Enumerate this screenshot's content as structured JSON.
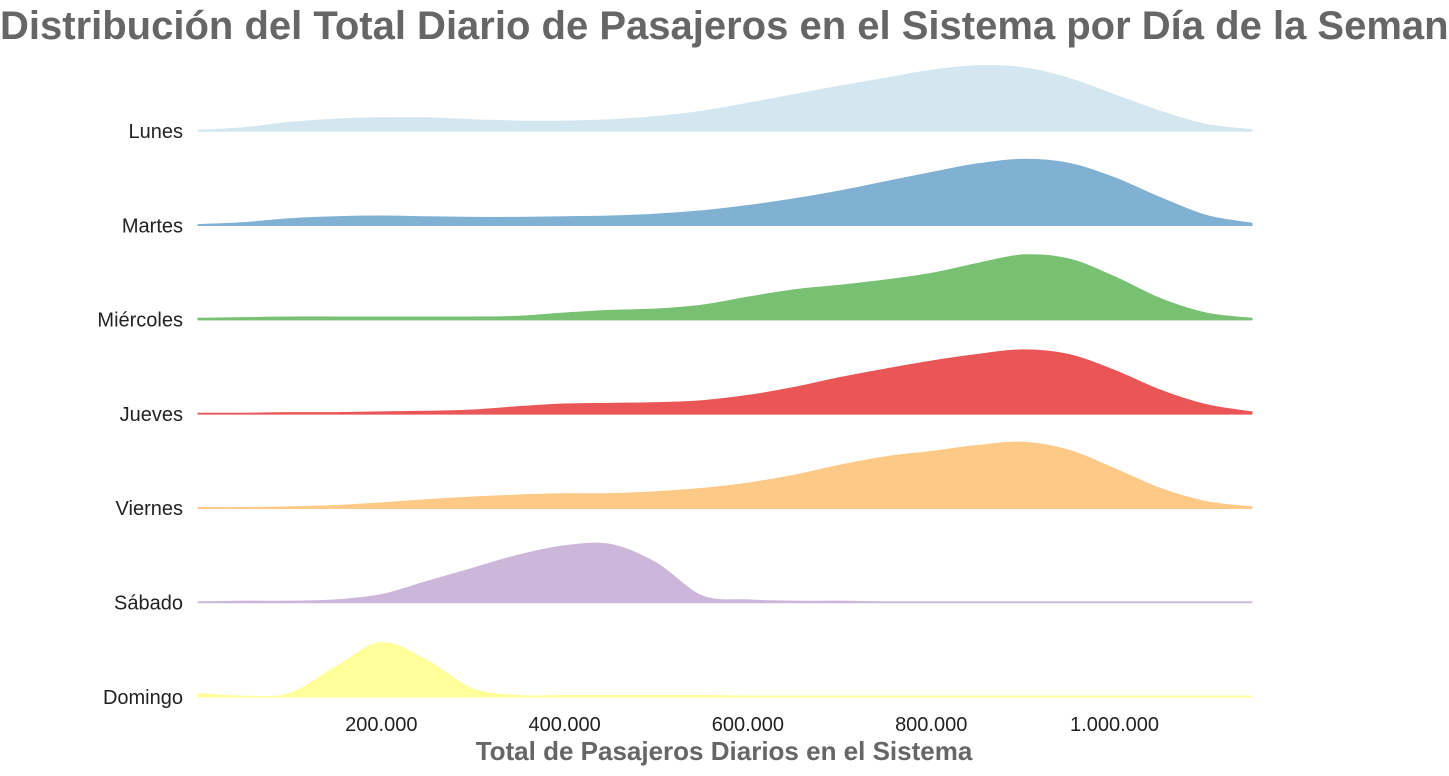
{
  "chart_data": {
    "type": "area",
    "subtype": "ridgeline",
    "title": "Distribución del Total Diario de Pasajeros en el Sistema por Día de la Semana",
    "xlabel": "Total de Pasajeros Diarios en el Sistema",
    "ylabel": "",
    "xlim": [
      0,
      1150000
    ],
    "x_ticks": [
      200000,
      400000,
      600000,
      800000,
      1000000
    ],
    "x_tick_labels": [
      "200.000",
      "400.000",
      "600.000",
      "800.000",
      "1.000.000"
    ],
    "grid": false,
    "legend": "none",
    "x": [
      0,
      50000,
      100000,
      150000,
      200000,
      250000,
      300000,
      350000,
      400000,
      450000,
      500000,
      550000,
      600000,
      650000,
      700000,
      750000,
      800000,
      850000,
      900000,
      950000,
      1000000,
      1050000,
      1100000,
      1150000
    ],
    "series": [
      {
        "name": "Lunes",
        "color": "#d4e6f0",
        "values": [
          0.01,
          0.05,
          0.13,
          0.18,
          0.2,
          0.2,
          0.17,
          0.15,
          0.15,
          0.17,
          0.22,
          0.3,
          0.42,
          0.55,
          0.68,
          0.8,
          0.92,
          0.99,
          0.96,
          0.8,
          0.55,
          0.3,
          0.1,
          0.02
        ]
      },
      {
        "name": "Martes",
        "color": "#80b1d3",
        "values": [
          0.01,
          0.04,
          0.1,
          0.13,
          0.14,
          0.13,
          0.12,
          0.12,
          0.13,
          0.14,
          0.17,
          0.22,
          0.3,
          0.4,
          0.52,
          0.66,
          0.8,
          0.93,
          1.0,
          0.94,
          0.72,
          0.42,
          0.15,
          0.03
        ]
      },
      {
        "name": "Miércoles",
        "color": "#78c173",
        "values": [
          0.02,
          0.03,
          0.04,
          0.04,
          0.04,
          0.04,
          0.04,
          0.05,
          0.1,
          0.14,
          0.16,
          0.22,
          0.34,
          0.45,
          0.52,
          0.6,
          0.7,
          0.85,
          0.98,
          0.92,
          0.65,
          0.32,
          0.1,
          0.02
        ]
      },
      {
        "name": "Jueves",
        "color": "#ea5656",
        "values": [
          0.01,
          0.01,
          0.02,
          0.02,
          0.03,
          0.04,
          0.06,
          0.11,
          0.15,
          0.16,
          0.17,
          0.2,
          0.28,
          0.4,
          0.55,
          0.68,
          0.8,
          0.9,
          0.97,
          0.9,
          0.66,
          0.36,
          0.14,
          0.03
        ]
      },
      {
        "name": "Viernes",
        "color": "#fdc986",
        "values": [
          0.01,
          0.01,
          0.02,
          0.04,
          0.08,
          0.13,
          0.17,
          0.2,
          0.22,
          0.22,
          0.25,
          0.3,
          0.38,
          0.5,
          0.65,
          0.78,
          0.86,
          0.95,
          1.0,
          0.88,
          0.6,
          0.3,
          0.1,
          0.02
        ]
      },
      {
        "name": "Sábado",
        "color": "#ccb6d9",
        "values": [
          0.01,
          0.02,
          0.02,
          0.04,
          0.12,
          0.32,
          0.52,
          0.72,
          0.86,
          0.88,
          0.6,
          0.1,
          0.04,
          0.02,
          0.02,
          0.01,
          0.01,
          0.01,
          0.01,
          0.01,
          0.01,
          0.01,
          0.01,
          0.01
        ]
      },
      {
        "name": "Domingo",
        "color": "#ffff99",
        "values": [
          0.05,
          0.01,
          0.05,
          0.45,
          0.82,
          0.55,
          0.12,
          0.02,
          0.02,
          0.02,
          0.02,
          0.02,
          0.01,
          0.01,
          0.01,
          0.01,
          0.01,
          0.01,
          0.01,
          0.01,
          0.01,
          0.01,
          0.01,
          0.01
        ]
      }
    ]
  }
}
